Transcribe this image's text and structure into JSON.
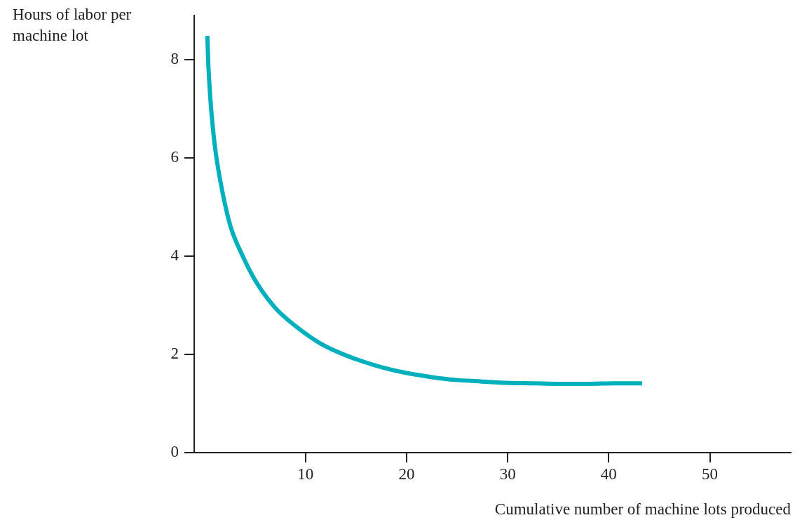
{
  "chart_data": {
    "type": "line",
    "xlabel": "Cumulative number of machine lots produced",
    "ylabel": "Hours of labor per machine lot",
    "series": [
      {
        "color": "#00b0bd",
        "x": [
          0.3,
          0.4,
          0.6,
          0.9,
          1.2,
          1.8,
          2.6,
          3.8,
          5.2,
          7,
          9,
          11.5,
          14,
          17,
          20,
          22.4,
          24.8,
          27.3,
          29.8,
          32.5,
          35.2,
          38,
          40.5,
          43.3
        ],
        "values": [
          8.48,
          7.9,
          7.2,
          6.5,
          6.0,
          5.3,
          4.6,
          4.0,
          3.45,
          2.95,
          2.58,
          2.22,
          1.98,
          1.77,
          1.62,
          1.54,
          1.48,
          1.45,
          1.42,
          1.41,
          1.4,
          1.4,
          1.41,
          1.41
        ]
      }
    ],
    "xlim": [
      -1,
      58
    ],
    "xticks": [
      10,
      20,
      30,
      40,
      50
    ],
    "ylim": [
      0,
      8.9
    ],
    "yticks": [
      0,
      2,
      4,
      6,
      8
    ],
    "grid": false,
    "legend": false,
    "marker": "none",
    "line_style": "solid"
  }
}
